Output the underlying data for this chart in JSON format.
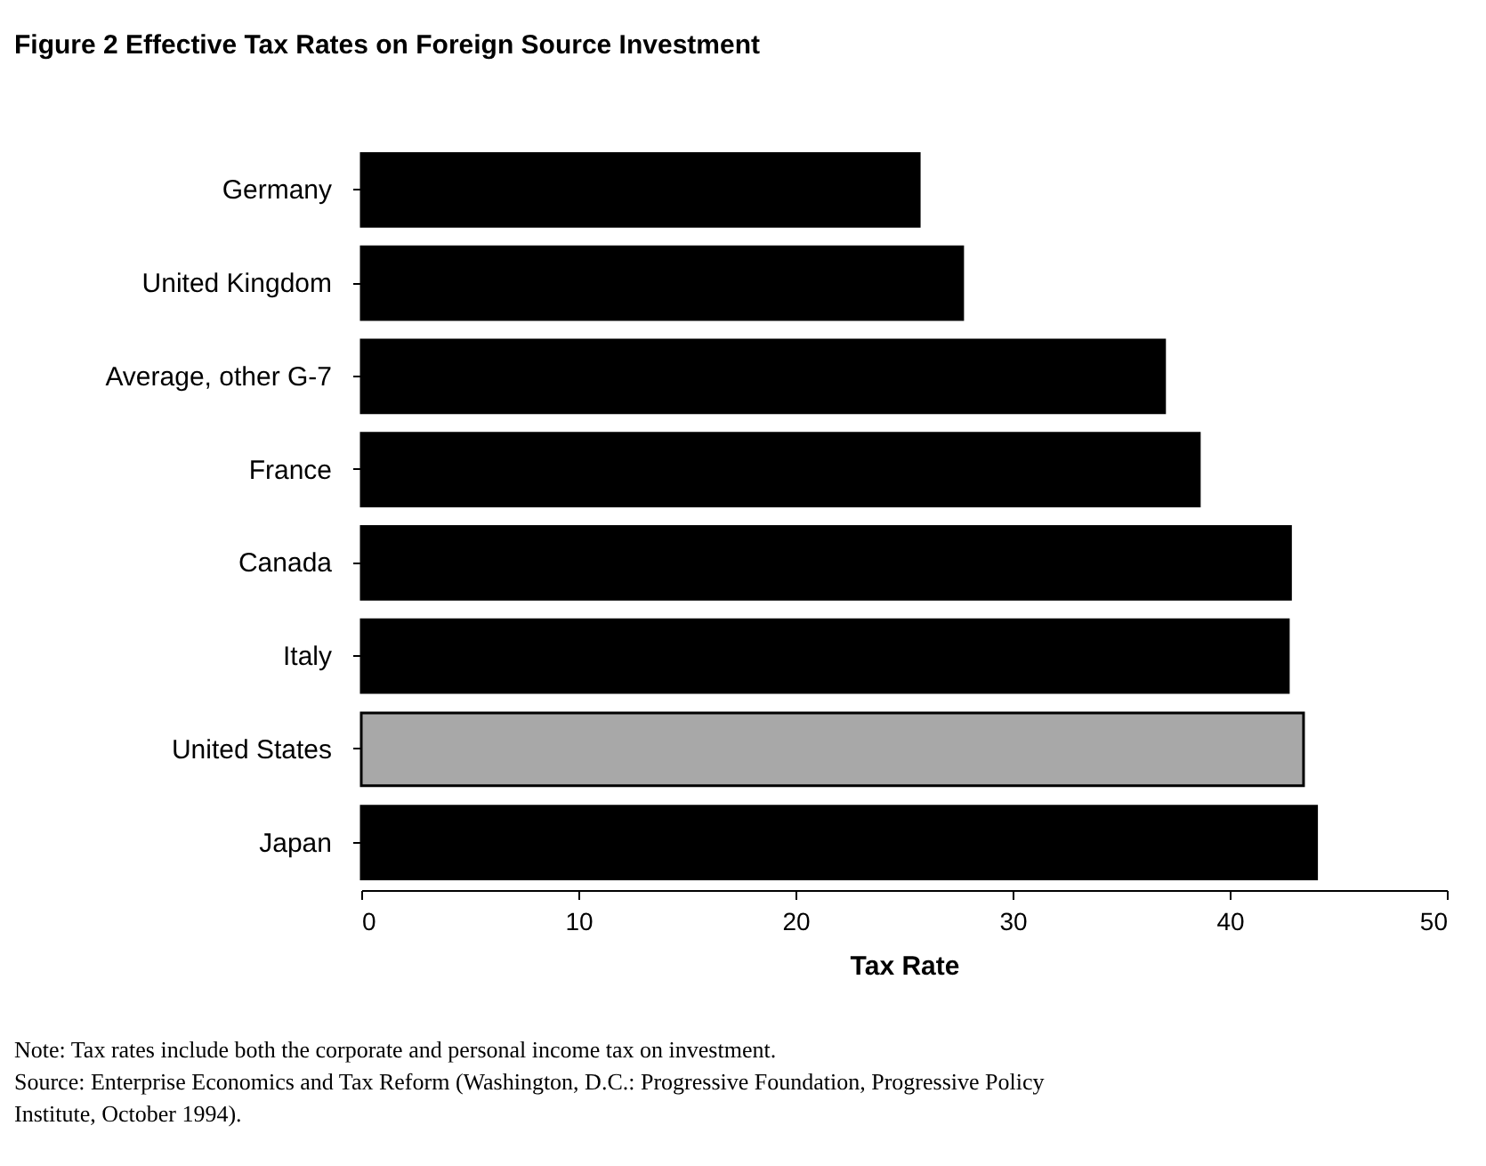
{
  "chart_data": {
    "type": "bar",
    "orientation": "horizontal",
    "title": "Figure 2   Effective Tax Rates on Foreign Source Investment",
    "categories": [
      "Germany",
      "United Kingdom",
      "Average, other G-7",
      "France",
      "Canada",
      "Italy",
      "United States",
      "Japan"
    ],
    "values": [
      25.7,
      27.7,
      37.0,
      38.6,
      42.8,
      42.7,
      43.4,
      44.0
    ],
    "colors": [
      "#000000",
      "#000000",
      "#000000",
      "#000000",
      "#000000",
      "#000000",
      "#a8a8a8",
      "#000000"
    ],
    "xlabel": "Tax Rate",
    "xlim": [
      0,
      50
    ],
    "xticks": [
      0,
      10,
      20,
      30,
      40,
      50
    ],
    "grid": false,
    "annotations": [
      "Note: Tax rates include both the corporate and personal income tax on investment.",
      "Source: Enterprise Economics and Tax Reform (Washington, D.C.: Progressive Foundation, Progressive Policy",
      "Institute, October 1994)."
    ]
  }
}
